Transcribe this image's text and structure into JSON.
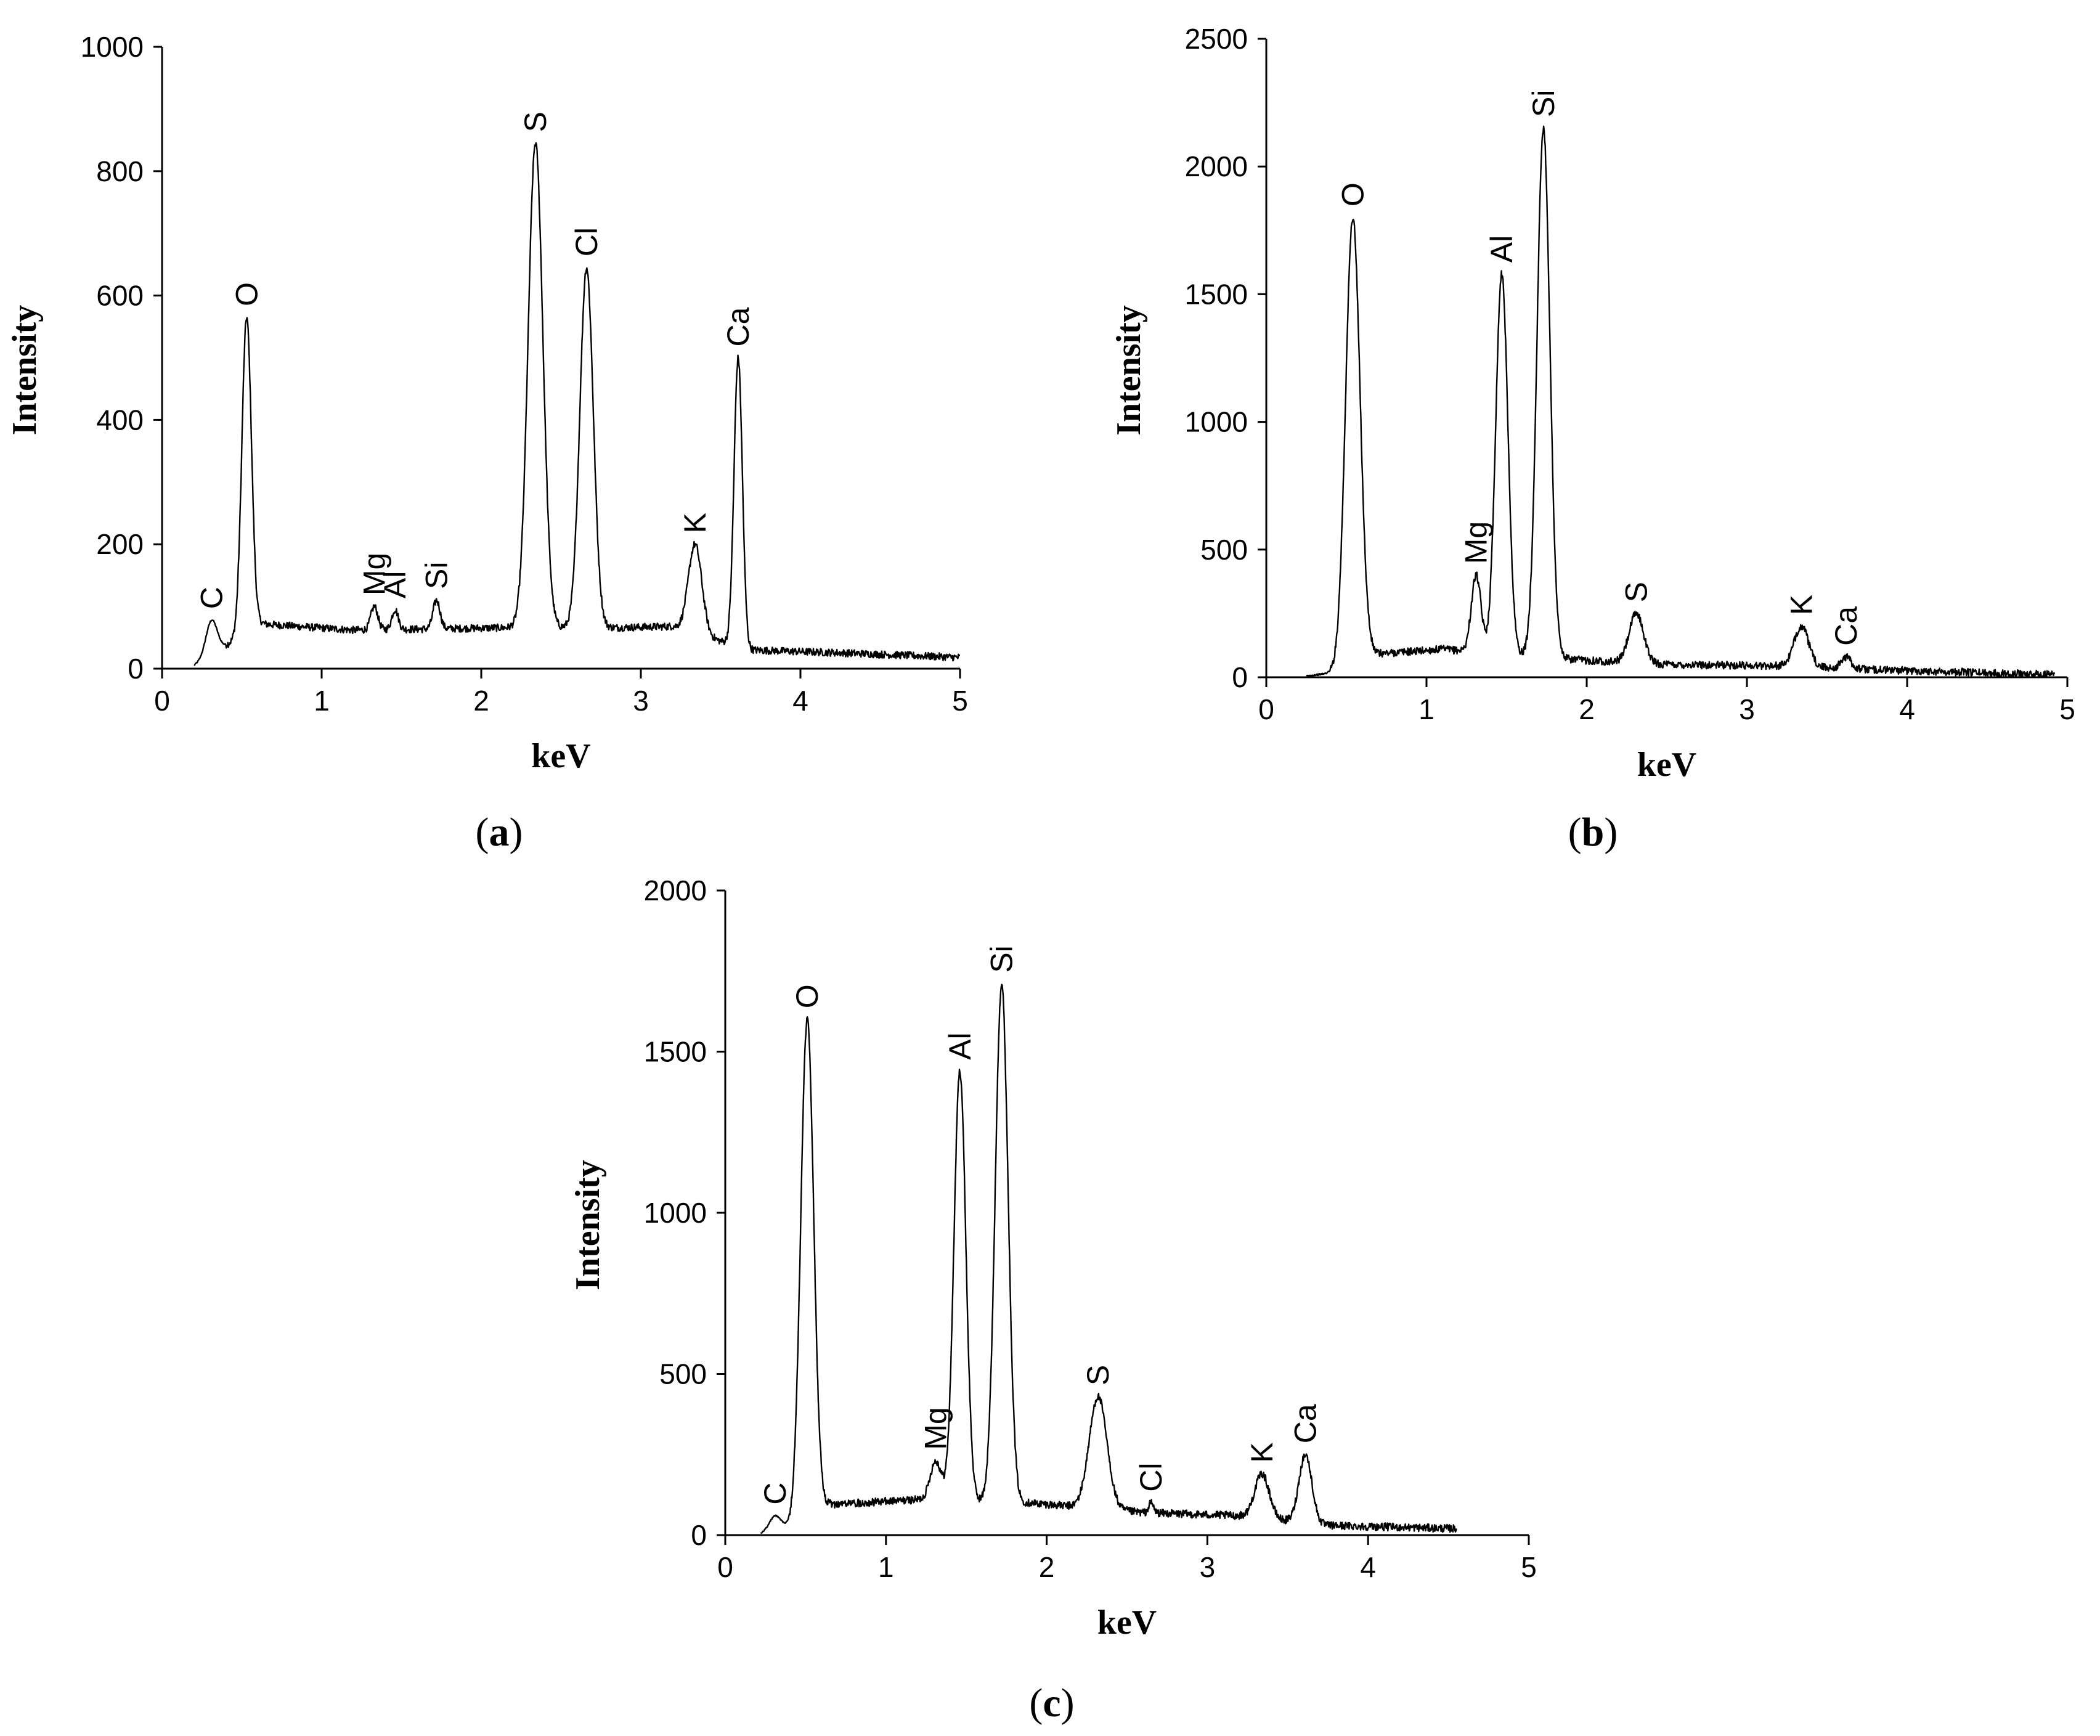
{
  "chart_data": [
    {
      "type": "line",
      "caption_letter": "a",
      "xlabel": "keV",
      "ylabel": "Intensity",
      "xlim": [
        0,
        5
      ],
      "ylim": [
        0,
        1000
      ],
      "x_ticks": [
        0,
        1,
        2,
        3,
        4,
        5
      ],
      "y_ticks": [
        0,
        200,
        400,
        600,
        800,
        1000
      ],
      "grid": false,
      "x_end": 5.0,
      "baseline": [
        [
          0.2,
          5
        ],
        [
          0.62,
          72
        ],
        [
          1.2,
          62
        ],
        [
          2.2,
          66
        ],
        [
          2.86,
          66
        ],
        [
          3.2,
          68
        ],
        [
          3.68,
          30
        ],
        [
          4.3,
          25
        ],
        [
          5.0,
          18
        ]
      ],
      "peaks": [
        {
          "label": "C",
          "x": 0.31,
          "y": 78,
          "w": 0.035
        },
        {
          "label": "O",
          "x": 0.53,
          "y": 565,
          "w": 0.03
        },
        {
          "label": "Mg",
          "x": 1.33,
          "y": 100,
          "w": 0.022
        },
        {
          "label": "Al",
          "x": 1.46,
          "y": 95,
          "w": 0.02
        },
        {
          "label": "Si",
          "x": 1.72,
          "y": 110,
          "w": 0.022
        },
        {
          "label": "S",
          "x": 2.34,
          "y": 845,
          "w": 0.046
        },
        {
          "label": "Cl",
          "x": 2.66,
          "y": 645,
          "w": 0.042
        },
        {
          "label": "K",
          "x": 3.34,
          "y": 200,
          "w": 0.042
        },
        {
          "label": "Ca",
          "x": 3.61,
          "y": 500,
          "w": 0.026
        }
      ]
    },
    {
      "type": "line",
      "caption_letter": "b",
      "xlabel": "keV",
      "ylabel": "Intensity",
      "xlim": [
        0,
        5
      ],
      "ylim": [
        0,
        2500
      ],
      "x_ticks": [
        0,
        1,
        2,
        3,
        4,
        5
      ],
      "y_ticks": [
        0,
        500,
        1000,
        1500,
        2000,
        2500
      ],
      "grid": false,
      "x_end": 4.92,
      "baseline": [
        [
          0.25,
          5
        ],
        [
          0.45,
          20
        ],
        [
          0.65,
          90
        ],
        [
          1.1,
          110
        ],
        [
          1.9,
          70
        ],
        [
          2.5,
          50
        ],
        [
          3.2,
          45
        ],
        [
          3.8,
          30
        ],
        [
          4.92,
          10
        ]
      ],
      "peaks": [
        {
          "label": "O",
          "x": 0.54,
          "y": 1800,
          "w": 0.045
        },
        {
          "label": "Mg",
          "x": 1.31,
          "y": 400,
          "w": 0.03
        },
        {
          "label": "Al",
          "x": 1.47,
          "y": 1580,
          "w": 0.038
        },
        {
          "label": "Si",
          "x": 1.73,
          "y": 2150,
          "w": 0.04
        },
        {
          "label": "S",
          "x": 2.31,
          "y": 250,
          "w": 0.045
        },
        {
          "label": "K",
          "x": 3.34,
          "y": 200,
          "w": 0.045
        },
        {
          "label": "Ca",
          "x": 3.62,
          "y": 80,
          "w": 0.03
        }
      ]
    },
    {
      "type": "line",
      "caption_letter": "c",
      "xlabel": "keV",
      "ylabel": "Intensity",
      "xlim": [
        0,
        5
      ],
      "ylim": [
        0,
        2000
      ],
      "x_ticks": [
        0,
        1,
        2,
        3,
        4,
        5
      ],
      "y_ticks": [
        0,
        500,
        1000,
        1500,
        2000
      ],
      "grid": false,
      "x_end": 4.55,
      "baseline": [
        [
          0.22,
          5
        ],
        [
          0.4,
          30
        ],
        [
          0.65,
          95
        ],
        [
          1.2,
          110
        ],
        [
          1.9,
          100
        ],
        [
          2.6,
          70
        ],
        [
          3.2,
          60
        ],
        [
          3.75,
          30
        ],
        [
          4.55,
          20
        ]
      ],
      "peaks": [
        {
          "label": "C",
          "x": 0.31,
          "y": 60,
          "w": 0.035
        },
        {
          "label": "O",
          "x": 0.51,
          "y": 1600,
          "w": 0.04
        },
        {
          "label": "Mg",
          "x": 1.31,
          "y": 230,
          "w": 0.035
        },
        {
          "label": "Al",
          "x": 1.46,
          "y": 1440,
          "w": 0.037
        },
        {
          "label": "Si",
          "x": 1.72,
          "y": 1710,
          "w": 0.04
        },
        {
          "label": "S",
          "x": 2.32,
          "y": 430,
          "w": 0.055
        },
        {
          "label": "Cl",
          "x": 2.65,
          "y": 100,
          "w": 0.015
        },
        {
          "label": "K",
          "x": 3.34,
          "y": 190,
          "w": 0.045
        },
        {
          "label": "Ca",
          "x": 3.61,
          "y": 250,
          "w": 0.04
        }
      ]
    }
  ]
}
